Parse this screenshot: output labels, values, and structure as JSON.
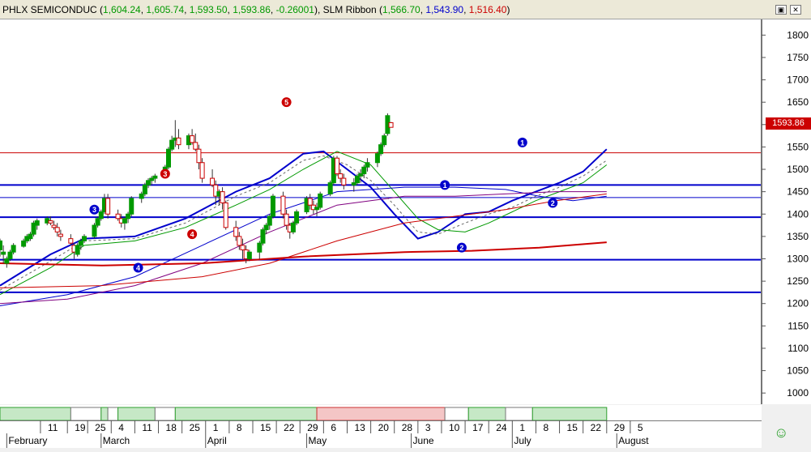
{
  "title": {
    "segments": [
      {
        "text": "PHLX SEMICONDUC (",
        "color": "#000000"
      },
      {
        "text": "1,604.24",
        "color": "#009900"
      },
      {
        "text": ", ",
        "color": "#000000"
      },
      {
        "text": "1,605.74",
        "color": "#009900"
      },
      {
        "text": ", ",
        "color": "#000000"
      },
      {
        "text": "1,593.50",
        "color": "#009900"
      },
      {
        "text": ", ",
        "color": "#000000"
      },
      {
        "text": "1,593.86",
        "color": "#009900"
      },
      {
        "text": ", ",
        "color": "#000000"
      },
      {
        "text": "-0.26001",
        "color": "#009900"
      },
      {
        "text": "), SLM Ribbon (",
        "color": "#000000"
      },
      {
        "text": "1,566.70",
        "color": "#009900"
      },
      {
        "text": ", ",
        "color": "#000000"
      },
      {
        "text": "1,543.90",
        "color": "#0000cc"
      },
      {
        "text": ", ",
        "color": "#000000"
      },
      {
        "text": "1,516.40",
        "color": "#cc0000"
      },
      {
        "text": ")",
        "color": "#000000"
      }
    ],
    "restore_icon": "restore-icon",
    "close_icon": "close-icon"
  },
  "price_tag": "1593.86",
  "chart_data": {
    "type": "candlestick",
    "ylim": [
      975,
      1835
    ],
    "yticks": [
      1000,
      1050,
      1100,
      1150,
      1200,
      1250,
      1300,
      1350,
      1400,
      1450,
      1500,
      1550,
      1600,
      1650,
      1700,
      1750,
      1800
    ],
    "xticks": [
      {
        "day": 42,
        "label": "11"
      },
      {
        "day": 50,
        "label": "19"
      },
      {
        "day": 56,
        "label": "25"
      },
      {
        "day": 63,
        "label": "4"
      },
      {
        "day": 70,
        "label": "11"
      },
      {
        "day": 77,
        "label": "18"
      },
      {
        "day": 84,
        "label": "25"
      },
      {
        "day": 91,
        "label": "1"
      },
      {
        "day": 98,
        "label": "8"
      },
      {
        "day": 105,
        "label": "15"
      },
      {
        "day": 112,
        "label": "22"
      },
      {
        "day": 119,
        "label": "29"
      },
      {
        "day": 126,
        "label": "6"
      },
      {
        "day": 133,
        "label": "13"
      },
      {
        "day": 140,
        "label": "20"
      },
      {
        "day": 147,
        "label": "28"
      },
      {
        "day": 154,
        "label": "3"
      },
      {
        "day": 161,
        "label": "10"
      },
      {
        "day": 168,
        "label": "17"
      },
      {
        "day": 175,
        "label": "24"
      },
      {
        "day": 182,
        "label": "1"
      },
      {
        "day": 189,
        "label": "8"
      },
      {
        "day": 196,
        "label": "15"
      },
      {
        "day": 203,
        "label": "22"
      },
      {
        "day": 210,
        "label": "29"
      },
      {
        "day": 217,
        "label": "5"
      }
    ],
    "months": [
      {
        "day": 32,
        "label": "February"
      },
      {
        "day": 60,
        "label": "March"
      },
      {
        "day": 91,
        "label": "April"
      },
      {
        "day": 121,
        "label": "May"
      },
      {
        "day": 152,
        "label": "June"
      },
      {
        "day": 182,
        "label": "July"
      },
      {
        "day": 213,
        "label": "August"
      }
    ],
    "hlines": [
      {
        "y": 1537,
        "color": "#cc0000",
        "width": 1
      },
      {
        "y": 1465,
        "color": "#0000cc",
        "width": 2
      },
      {
        "y": 1437,
        "color": "#0000cc",
        "width": 1
      },
      {
        "y": 1393,
        "color": "#0000cc",
        "width": 2
      },
      {
        "y": 1298,
        "color": "#0000cc",
        "width": 2
      },
      {
        "y": 1225,
        "color": "#0000cc",
        "width": 2
      }
    ],
    "candles_note": "o,h,l,c per trading day; first day = day 30",
    "candles": [
      [
        1320,
        1345,
        1305,
        1340
      ],
      [
        1310,
        1330,
        1290,
        1315
      ],
      [
        1290,
        1305,
        1280,
        1300
      ],
      [
        1300,
        1320,
        1295,
        1315
      ],
      [
        1315,
        1335,
        1310,
        1330
      ],
      [
        1328,
        1345,
        1325,
        1340
      ],
      [
        1340,
        1355,
        1335,
        1350
      ],
      [
        1345,
        1360,
        1340,
        1355
      ],
      [
        1355,
        1385,
        1350,
        1380
      ],
      [
        1375,
        1390,
        1365,
        1385
      ],
      [
        1380,
        1395,
        1375,
        1390
      ],
      [
        1385,
        1395,
        1375,
        1380
      ],
      [
        1375,
        1385,
        1365,
        1370
      ],
      [
        1370,
        1380,
        1350,
        1360
      ],
      [
        1355,
        1365,
        1340,
        1350
      ],
      [
        1345,
        1355,
        1330,
        1335
      ],
      [
        1330,
        1335,
        1300,
        1315
      ],
      [
        1310,
        1335,
        1305,
        1330
      ],
      [
        1330,
        1345,
        1320,
        1340
      ],
      [
        1340,
        1355,
        1335,
        1350
      ],
      [
        1350,
        1380,
        1345,
        1375
      ],
      [
        1375,
        1395,
        1370,
        1390
      ],
      [
        1390,
        1410,
        1385,
        1405
      ],
      [
        1405,
        1445,
        1400,
        1435
      ],
      [
        1435,
        1445,
        1390,
        1400
      ],
      [
        1400,
        1410,
        1385,
        1390
      ],
      [
        1390,
        1400,
        1370,
        1380
      ],
      [
        1380,
        1395,
        1365,
        1390
      ],
      [
        1390,
        1405,
        1380,
        1400
      ],
      [
        1400,
        1440,
        1395,
        1435
      ],
      [
        1435,
        1450,
        1425,
        1445
      ],
      [
        1445,
        1470,
        1440,
        1465
      ],
      [
        1465,
        1480,
        1458,
        1475
      ],
      [
        1475,
        1485,
        1465,
        1480
      ],
      [
        1480,
        1490,
        1470,
        1485
      ],
      [
        1485,
        1510,
        1480,
        1505
      ],
      [
        1505,
        1550,
        1500,
        1545
      ],
      [
        1545,
        1575,
        1540,
        1565
      ],
      [
        1565,
        1610,
        1550,
        1570
      ],
      [
        1570,
        1590,
        1545,
        1555
      ],
      [
        1555,
        1580,
        1545,
        1575
      ],
      [
        1575,
        1590,
        1555,
        1560
      ],
      [
        1560,
        1580,
        1540,
        1545
      ],
      [
        1545,
        1555,
        1500,
        1515
      ],
      [
        1515,
        1525,
        1470,
        1480
      ],
      [
        1480,
        1500,
        1460,
        1465
      ],
      [
        1465,
        1475,
        1420,
        1440
      ],
      [
        1440,
        1455,
        1420,
        1450
      ],
      [
        1450,
        1460,
        1410,
        1425
      ],
      [
        1425,
        1430,
        1365,
        1370
      ],
      [
        1370,
        1385,
        1340,
        1350
      ],
      [
        1350,
        1360,
        1320,
        1330
      ],
      [
        1330,
        1345,
        1300,
        1320
      ],
      [
        1320,
        1330,
        1290,
        1300
      ],
      [
        1300,
        1320,
        1295,
        1315
      ],
      [
        1315,
        1340,
        1300,
        1335
      ],
      [
        1335,
        1370,
        1330,
        1365
      ],
      [
        1365,
        1380,
        1355,
        1375
      ],
      [
        1375,
        1400,
        1365,
        1395
      ],
      [
        1395,
        1445,
        1390,
        1440
      ],
      [
        1440,
        1450,
        1390,
        1400
      ],
      [
        1400,
        1410,
        1365,
        1375
      ],
      [
        1375,
        1380,
        1345,
        1360
      ],
      [
        1360,
        1385,
        1355,
        1380
      ],
      [
        1380,
        1410,
        1375,
        1405
      ],
      [
        1405,
        1440,
        1400,
        1435
      ],
      [
        1435,
        1445,
        1410,
        1420
      ],
      [
        1420,
        1430,
        1400,
        1410
      ],
      [
        1410,
        1425,
        1395,
        1415
      ],
      [
        1415,
        1450,
        1410,
        1445
      ],
      [
        1445,
        1475,
        1440,
        1470
      ],
      [
        1470,
        1530,
        1465,
        1525
      ],
      [
        1525,
        1530,
        1485,
        1490
      ],
      [
        1490,
        1500,
        1470,
        1480
      ],
      [
        1480,
        1490,
        1455,
        1465
      ],
      [
        1465,
        1480,
        1450,
        1470
      ],
      [
        1470,
        1490,
        1465,
        1485
      ],
      [
        1485,
        1500,
        1470,
        1490
      ],
      [
        1490,
        1510,
        1480,
        1505
      ],
      [
        1505,
        1525,
        1495,
        1515
      ],
      [
        1515,
        1540,
        1505,
        1535
      ],
      [
        1535,
        1560,
        1530,
        1555
      ],
      [
        1555,
        1580,
        1550,
        1575
      ],
      [
        1580,
        1625,
        1575,
        1620
      ],
      [
        1604.24,
        1605.74,
        1593.5,
        1593.86
      ]
    ],
    "markers": [
      {
        "day": 58,
        "y": 1410,
        "label": "3",
        "color": "#0000cc"
      },
      {
        "day": 71,
        "y": 1280,
        "label": "4",
        "color": "#0000cc"
      },
      {
        "day": 79,
        "y": 1490,
        "label": "3",
        "color": "#cc0000"
      },
      {
        "day": 87,
        "y": 1355,
        "label": "4",
        "color": "#cc0000"
      },
      {
        "day": 115,
        "y": 1650,
        "label": "5",
        "color": "#cc0000"
      },
      {
        "day": 162,
        "y": 1465,
        "label": "1",
        "color": "#0000cc"
      },
      {
        "day": 167,
        "y": 1325,
        "label": "2",
        "color": "#0000cc"
      },
      {
        "day": 185,
        "y": 1560,
        "label": "1",
        "color": "#0000cc"
      },
      {
        "day": 194,
        "y": 1425,
        "label": "2",
        "color": "#0000cc"
      }
    ],
    "series": [
      {
        "color": "#0000cc",
        "width": 2,
        "points": [
          [
            30,
            1240
          ],
          [
            45,
            1310
          ],
          [
            55,
            1345
          ],
          [
            70,
            1350
          ],
          [
            85,
            1390
          ],
          [
            100,
            1450
          ],
          [
            110,
            1480
          ],
          [
            120,
            1535
          ],
          [
            126,
            1540
          ],
          [
            133,
            1500
          ],
          [
            140,
            1460
          ],
          [
            147,
            1400
          ],
          [
            154,
            1345
          ],
          [
            160,
            1360
          ],
          [
            168,
            1400
          ],
          [
            175,
            1405
          ],
          [
            182,
            1430
          ],
          [
            189,
            1450
          ],
          [
            196,
            1470
          ],
          [
            203,
            1495
          ],
          [
            210,
            1545
          ]
        ]
      },
      {
        "color": "#666666",
        "width": 1,
        "dash": "3,3",
        "points": [
          [
            30,
            1230
          ],
          [
            45,
            1295
          ],
          [
            55,
            1340
          ],
          [
            70,
            1345
          ],
          [
            85,
            1380
          ],
          [
            100,
            1440
          ],
          [
            110,
            1470
          ],
          [
            120,
            1520
          ],
          [
            126,
            1530
          ],
          [
            133,
            1510
          ],
          [
            140,
            1475
          ],
          [
            147,
            1420
          ],
          [
            154,
            1360
          ],
          [
            160,
            1355
          ],
          [
            168,
            1380
          ],
          [
            175,
            1400
          ],
          [
            182,
            1415
          ],
          [
            189,
            1440
          ],
          [
            196,
            1460
          ],
          [
            203,
            1485
          ],
          [
            210,
            1520
          ]
        ]
      },
      {
        "color": "#009900",
        "width": 1,
        "points": [
          [
            30,
            1220
          ],
          [
            45,
            1280
          ],
          [
            55,
            1330
          ],
          [
            70,
            1340
          ],
          [
            85,
            1370
          ],
          [
            100,
            1420
          ],
          [
            110,
            1455
          ],
          [
            120,
            1500
          ],
          [
            130,
            1540
          ],
          [
            140,
            1510
          ],
          [
            147,
            1450
          ],
          [
            154,
            1390
          ],
          [
            160,
            1365
          ],
          [
            168,
            1360
          ],
          [
            175,
            1380
          ],
          [
            182,
            1405
          ],
          [
            189,
            1430
          ],
          [
            196,
            1450
          ],
          [
            203,
            1470
          ],
          [
            210,
            1510
          ]
        ]
      },
      {
        "color": "#0000cc",
        "width": 1,
        "points": [
          [
            30,
            1195
          ],
          [
            50,
            1220
          ],
          [
            70,
            1260
          ],
          [
            90,
            1330
          ],
          [
            110,
            1400
          ],
          [
            130,
            1450
          ],
          [
            150,
            1460
          ],
          [
            165,
            1460
          ],
          [
            180,
            1455
          ],
          [
            190,
            1440
          ],
          [
            200,
            1430
          ],
          [
            210,
            1440
          ]
        ]
      },
      {
        "color": "#800080",
        "width": 1,
        "points": [
          [
            30,
            1200
          ],
          [
            50,
            1210
          ],
          [
            70,
            1240
          ],
          [
            90,
            1290
          ],
          [
            110,
            1360
          ],
          [
            130,
            1420
          ],
          [
            150,
            1440
          ],
          [
            165,
            1440
          ],
          [
            180,
            1445
          ],
          [
            195,
            1450
          ],
          [
            210,
            1450
          ]
        ]
      },
      {
        "color": "#cc0000",
        "width": 1,
        "points": [
          [
            30,
            1235
          ],
          [
            60,
            1240
          ],
          [
            90,
            1260
          ],
          [
            110,
            1290
          ],
          [
            130,
            1340
          ],
          [
            150,
            1380
          ],
          [
            165,
            1395
          ],
          [
            180,
            1410
          ],
          [
            195,
            1430
          ],
          [
            210,
            1445
          ]
        ]
      },
      {
        "color": "#cc0000",
        "width": 2,
        "points": [
          [
            30,
            1290
          ],
          [
            60,
            1285
          ],
          [
            90,
            1290
          ],
          [
            120,
            1305
          ],
          [
            150,
            1315
          ],
          [
            170,
            1318
          ],
          [
            190,
            1325
          ],
          [
            210,
            1337
          ]
        ]
      }
    ]
  },
  "timeline": {
    "segments": [
      {
        "from": 30,
        "to": 51,
        "style": "green",
        "label": ""
      },
      {
        "from": 51,
        "to": 60,
        "style": "white",
        "label": ""
      },
      {
        "from": 60,
        "to": 62,
        "style": "green",
        "label": ""
      },
      {
        "from": 62,
        "to": 65,
        "style": "white",
        "label": ""
      },
      {
        "from": 65,
        "to": 76,
        "style": "green",
        "label": ""
      },
      {
        "from": 76,
        "to": 82,
        "style": "white",
        "label": ""
      },
      {
        "from": 82,
        "to": 124,
        "style": "green",
        "label": ""
      },
      {
        "from": 124,
        "to": 162,
        "style": "red",
        "label": ""
      },
      {
        "from": 162,
        "to": 169,
        "style": "white",
        "label": ""
      },
      {
        "from": 169,
        "to": 180,
        "style": "green",
        "label": ""
      },
      {
        "from": 180,
        "to": 188,
        "style": "white",
        "label": ""
      },
      {
        "from": 188,
        "to": 210,
        "style": "green",
        "label": ""
      }
    ]
  },
  "status_icon": "smiley-icon"
}
